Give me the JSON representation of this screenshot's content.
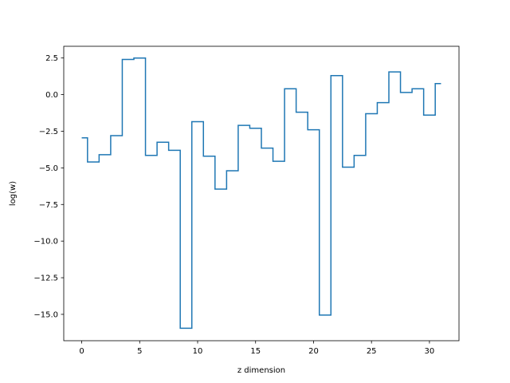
{
  "chart_data": {
    "type": "line",
    "step": "mid",
    "title": "",
    "xlabel": "z dimension",
    "ylabel": "log(w)",
    "xlim": [
      -1.55,
      32.55
    ],
    "ylim": [
      -16.8,
      3.3
    ],
    "grid": false,
    "legend": "none",
    "x_ticks": [
      0,
      5,
      10,
      15,
      20,
      25,
      30
    ],
    "y_ticks": [
      2.5,
      0.0,
      -2.5,
      -5.0,
      -7.5,
      -10.0,
      -12.5,
      -15.0
    ],
    "x_tick_labels": [
      "0",
      "5",
      "10",
      "15",
      "20",
      "25",
      "30"
    ],
    "y_tick_labels": [
      "2.5",
      "0.0",
      "−2.5",
      "−5.0",
      "−7.5",
      "−10.0",
      "−12.5",
      "−15.0"
    ],
    "series": [
      {
        "color": "#1f77b4",
        "x": [
          0,
          1,
          2,
          3,
          4,
          5,
          6,
          7,
          8,
          9,
          10,
          11,
          12,
          13,
          14,
          15,
          16,
          17,
          18,
          19,
          20,
          21,
          22,
          23,
          24,
          25,
          26,
          27,
          28,
          29,
          30,
          31
        ],
        "values": [
          -2.95,
          -4.6,
          -4.1,
          -2.8,
          2.4,
          2.5,
          -4.15,
          -3.25,
          -3.8,
          -15.95,
          -1.85,
          -4.2,
          -6.45,
          -5.2,
          -2.1,
          -2.3,
          -3.65,
          -4.55,
          0.4,
          -1.2,
          -2.4,
          -15.05,
          1.3,
          -4.95,
          -4.15,
          -1.3,
          -0.55,
          1.55,
          0.15,
          0.4,
          -1.4,
          0.75
        ]
      }
    ]
  }
}
